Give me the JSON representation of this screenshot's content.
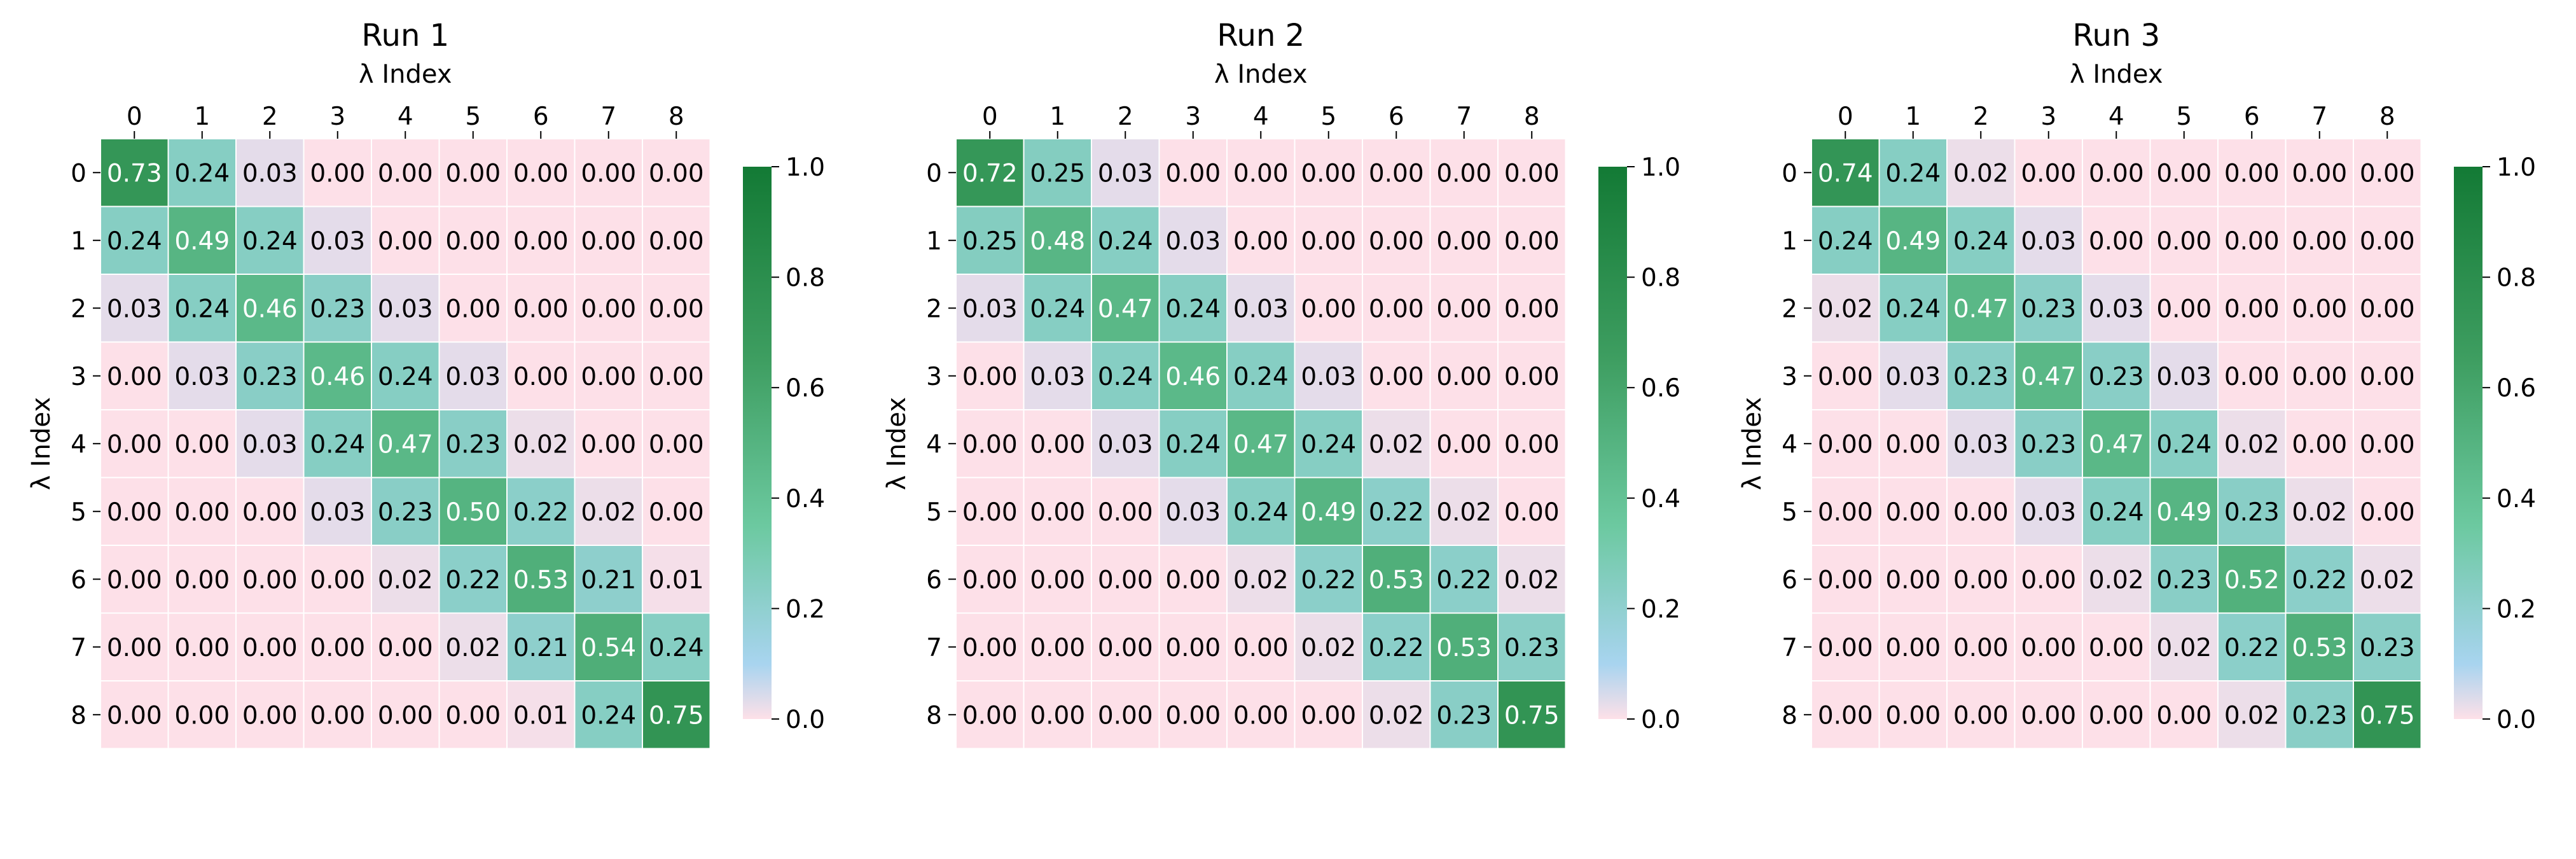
{
  "chart_data": [
    {
      "type": "heatmap",
      "title": "Run 1",
      "xlabel": "λ Index",
      "ylabel": "λ Index",
      "x_ticks": [
        "0",
        "1",
        "2",
        "3",
        "4",
        "5",
        "6",
        "7",
        "8"
      ],
      "y_ticks": [
        "0",
        "1",
        "2",
        "3",
        "4",
        "5",
        "6",
        "7",
        "8"
      ],
      "values": [
        [
          0.73,
          0.24,
          0.03,
          0.0,
          0.0,
          0.0,
          0.0,
          0.0,
          0.0
        ],
        [
          0.24,
          0.49,
          0.24,
          0.03,
          0.0,
          0.0,
          0.0,
          0.0,
          0.0
        ],
        [
          0.03,
          0.24,
          0.46,
          0.23,
          0.03,
          0.0,
          0.0,
          0.0,
          0.0
        ],
        [
          0.0,
          0.03,
          0.23,
          0.46,
          0.24,
          0.03,
          0.0,
          0.0,
          0.0
        ],
        [
          0.0,
          0.0,
          0.03,
          0.24,
          0.47,
          0.23,
          0.02,
          0.0,
          0.0
        ],
        [
          0.0,
          0.0,
          0.0,
          0.03,
          0.23,
          0.5,
          0.22,
          0.02,
          0.0
        ],
        [
          0.0,
          0.0,
          0.0,
          0.0,
          0.02,
          0.22,
          0.53,
          0.21,
          0.01
        ],
        [
          0.0,
          0.0,
          0.0,
          0.0,
          0.0,
          0.02,
          0.21,
          0.54,
          0.24
        ],
        [
          0.0,
          0.0,
          0.0,
          0.0,
          0.0,
          0.0,
          0.01,
          0.24,
          0.75
        ]
      ],
      "cell_labels": [
        [
          "0.73",
          "0.24",
          "0.03",
          "0.00",
          "0.00",
          "0.00",
          "0.00",
          "0.00",
          "0.00"
        ],
        [
          "0.24",
          "0.49",
          "0.24",
          "0.03",
          "0.00",
          "0.00",
          "0.00",
          "0.00",
          "0.00"
        ],
        [
          "0.03",
          "0.24",
          "0.46",
          "0.23",
          "0.03",
          "0.00",
          "0.00",
          "0.00",
          "0.00"
        ],
        [
          "0.00",
          "0.03",
          "0.23",
          "0.46",
          "0.24",
          "0.03",
          "0.00",
          "0.00",
          "0.00"
        ],
        [
          "0.00",
          "0.00",
          "0.03",
          "0.24",
          "0.47",
          "0.23",
          "0.02",
          "0.00",
          "0.00"
        ],
        [
          "0.00",
          "0.00",
          "0.00",
          "0.03",
          "0.23",
          "0.50",
          "0.22",
          "0.02",
          "0.00"
        ],
        [
          "0.00",
          "0.00",
          "0.00",
          "0.00",
          "0.02",
          "0.22",
          "0.53",
          "0.21",
          "0.01"
        ],
        [
          "0.00",
          "0.00",
          "0.00",
          "0.00",
          "0.00",
          "0.02",
          "0.21",
          "0.54",
          "0.24"
        ],
        [
          "0.00",
          "0.00",
          "0.00",
          "0.00",
          "0.00",
          "0.00",
          "0.01",
          "0.24",
          "0.75"
        ]
      ],
      "colorbar": {
        "range": [
          0,
          1
        ],
        "ticks": [
          "0.0",
          "0.2",
          "0.4",
          "0.6",
          "0.8",
          "1.0"
        ]
      }
    },
    {
      "type": "heatmap",
      "title": "Run 2",
      "xlabel": "λ Index",
      "ylabel": "λ Index",
      "x_ticks": [
        "0",
        "1",
        "2",
        "3",
        "4",
        "5",
        "6",
        "7",
        "8"
      ],
      "y_ticks": [
        "0",
        "1",
        "2",
        "3",
        "4",
        "5",
        "6",
        "7",
        "8"
      ],
      "values": [
        [
          0.72,
          0.25,
          0.03,
          0.0,
          0.0,
          0.0,
          0.0,
          0.0,
          0.0
        ],
        [
          0.25,
          0.48,
          0.24,
          0.03,
          0.0,
          0.0,
          0.0,
          0.0,
          0.0
        ],
        [
          0.03,
          0.24,
          0.47,
          0.24,
          0.03,
          0.0,
          0.0,
          0.0,
          0.0
        ],
        [
          0.0,
          0.03,
          0.24,
          0.46,
          0.24,
          0.03,
          0.0,
          0.0,
          0.0
        ],
        [
          0.0,
          0.0,
          0.03,
          0.24,
          0.47,
          0.24,
          0.02,
          0.0,
          0.0
        ],
        [
          0.0,
          0.0,
          0.0,
          0.03,
          0.24,
          0.49,
          0.22,
          0.02,
          0.0
        ],
        [
          0.0,
          0.0,
          0.0,
          0.0,
          0.02,
          0.22,
          0.53,
          0.22,
          0.02
        ],
        [
          0.0,
          0.0,
          0.0,
          0.0,
          0.0,
          0.02,
          0.22,
          0.53,
          0.23
        ],
        [
          0.0,
          0.0,
          0.0,
          0.0,
          0.0,
          0.0,
          0.02,
          0.23,
          0.75
        ]
      ],
      "cell_labels": [
        [
          "0.72",
          "0.25",
          "0.03",
          "0.00",
          "0.00",
          "0.00",
          "0.00",
          "0.00",
          "0.00"
        ],
        [
          "0.25",
          "0.48",
          "0.24",
          "0.03",
          "0.00",
          "0.00",
          "0.00",
          "0.00",
          "0.00"
        ],
        [
          "0.03",
          "0.24",
          "0.47",
          "0.24",
          "0.03",
          "0.00",
          "0.00",
          "0.00",
          "0.00"
        ],
        [
          "0.00",
          "0.03",
          "0.24",
          "0.46",
          "0.24",
          "0.03",
          "0.00",
          "0.00",
          "0.00"
        ],
        [
          "0.00",
          "0.00",
          "0.03",
          "0.24",
          "0.47",
          "0.24",
          "0.02",
          "0.00",
          "0.00"
        ],
        [
          "0.00",
          "0.00",
          "0.00",
          "0.03",
          "0.24",
          "0.49",
          "0.22",
          "0.02",
          "0.00"
        ],
        [
          "0.00",
          "0.00",
          "0.00",
          "0.00",
          "0.02",
          "0.22",
          "0.53",
          "0.22",
          "0.02"
        ],
        [
          "0.00",
          "0.00",
          "0.00",
          "0.00",
          "0.00",
          "0.02",
          "0.22",
          "0.53",
          "0.23"
        ],
        [
          "0.00",
          "0.00",
          "0.00",
          "0.00",
          "0.00",
          "0.00",
          "0.02",
          "0.23",
          "0.75"
        ]
      ],
      "colorbar": {
        "range": [
          0,
          1
        ],
        "ticks": [
          "0.0",
          "0.2",
          "0.4",
          "0.6",
          "0.8",
          "1.0"
        ]
      }
    },
    {
      "type": "heatmap",
      "title": "Run 3",
      "xlabel": "λ Index",
      "ylabel": "λ Index",
      "x_ticks": [
        "0",
        "1",
        "2",
        "3",
        "4",
        "5",
        "6",
        "7",
        "8"
      ],
      "y_ticks": [
        "0",
        "1",
        "2",
        "3",
        "4",
        "5",
        "6",
        "7",
        "8"
      ],
      "values": [
        [
          0.74,
          0.24,
          0.02,
          0.0,
          0.0,
          0.0,
          0.0,
          0.0,
          0.0
        ],
        [
          0.24,
          0.49,
          0.24,
          0.03,
          0.0,
          0.0,
          0.0,
          0.0,
          0.0
        ],
        [
          0.02,
          0.24,
          0.47,
          0.23,
          0.03,
          0.0,
          0.0,
          0.0,
          0.0
        ],
        [
          0.0,
          0.03,
          0.23,
          0.47,
          0.23,
          0.03,
          0.0,
          0.0,
          0.0
        ],
        [
          0.0,
          0.0,
          0.03,
          0.23,
          0.47,
          0.24,
          0.02,
          0.0,
          0.0
        ],
        [
          0.0,
          0.0,
          0.0,
          0.03,
          0.24,
          0.49,
          0.23,
          0.02,
          0.0
        ],
        [
          0.0,
          0.0,
          0.0,
          0.0,
          0.02,
          0.23,
          0.52,
          0.22,
          0.02
        ],
        [
          0.0,
          0.0,
          0.0,
          0.0,
          0.0,
          0.02,
          0.22,
          0.53,
          0.23
        ],
        [
          0.0,
          0.0,
          0.0,
          0.0,
          0.0,
          0.0,
          0.02,
          0.23,
          0.75
        ]
      ],
      "cell_labels": [
        [
          "0.74",
          "0.24",
          "0.02",
          "0.00",
          "0.00",
          "0.00",
          "0.00",
          "0.00",
          "0.00"
        ],
        [
          "0.24",
          "0.49",
          "0.24",
          "0.03",
          "0.00",
          "0.00",
          "0.00",
          "0.00",
          "0.00"
        ],
        [
          "0.02",
          "0.24",
          "0.47",
          "0.23",
          "0.03",
          "0.00",
          "0.00",
          "0.00",
          "0.00"
        ],
        [
          "0.00",
          "0.03",
          "0.23",
          "0.47",
          "0.23",
          "0.03",
          "0.00",
          "0.00",
          "0.00"
        ],
        [
          "0.00",
          "0.00",
          "0.03",
          "0.23",
          "0.47",
          "0.24",
          "0.02",
          "0.00",
          "0.00"
        ],
        [
          "0.00",
          "0.00",
          "0.00",
          "0.03",
          "0.24",
          "0.49",
          "0.23",
          "0.02",
          "0.00"
        ],
        [
          "0.00",
          "0.00",
          "0.00",
          "0.00",
          "0.02",
          "0.23",
          "0.52",
          "0.22",
          "0.02"
        ],
        [
          "0.00",
          "0.00",
          "0.00",
          "0.00",
          "0.00",
          "0.02",
          "0.22",
          "0.53",
          "0.23"
        ],
        [
          "0.00",
          "0.00",
          "0.00",
          "0.00",
          "0.00",
          "0.00",
          "0.02",
          "0.23",
          "0.75"
        ]
      ],
      "colorbar": {
        "range": [
          0,
          1
        ],
        "ticks": [
          "0.0",
          "0.2",
          "0.4",
          "0.6",
          "0.8",
          "1.0"
        ]
      }
    }
  ],
  "colormap": {
    "stops": [
      {
        "value": 0.0,
        "color": "#fde0e8"
      },
      {
        "value": 0.1,
        "color": "#a8d4ef"
      },
      {
        "value": 0.35,
        "color": "#6cc9a0"
      },
      {
        "value": 0.65,
        "color": "#3e9e61"
      },
      {
        "value": 1.0,
        "color": "#137a35"
      }
    ],
    "text_dark": "#000000",
    "text_light": "#ffffff",
    "cell_border": "#ffffff"
  }
}
